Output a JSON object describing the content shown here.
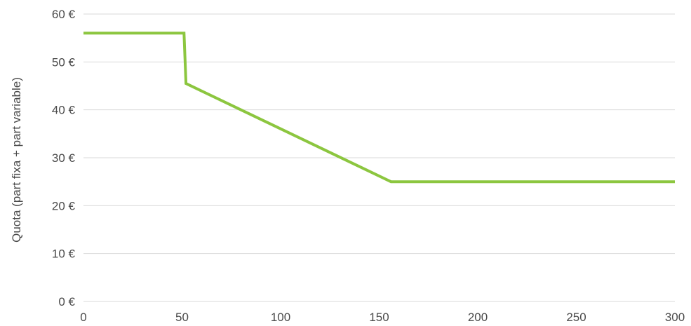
{
  "chart_data": {
    "type": "line",
    "title": "",
    "xlabel": "",
    "ylabel": "Quota (part fixa + part variable)",
    "xlim": [
      0,
      300
    ],
    "ylim": [
      0,
      60
    ],
    "x_ticks": [
      "0",
      "50",
      "100",
      "150",
      "200",
      "250",
      "300"
    ],
    "y_ticks": [
      "0 €",
      "10 €",
      "20 €",
      "30 €",
      "40 €",
      "50 €",
      "60 €"
    ],
    "grid": "horizontal",
    "legend": "none",
    "series": [
      {
        "color": "#8cc63f",
        "points": [
          {
            "x": 0,
            "y": 56
          },
          {
            "x": 51,
            "y": 56
          },
          {
            "x": 52,
            "y": 45.5
          },
          {
            "x": 156,
            "y": 25
          },
          {
            "x": 300,
            "y": 25
          }
        ]
      }
    ]
  }
}
